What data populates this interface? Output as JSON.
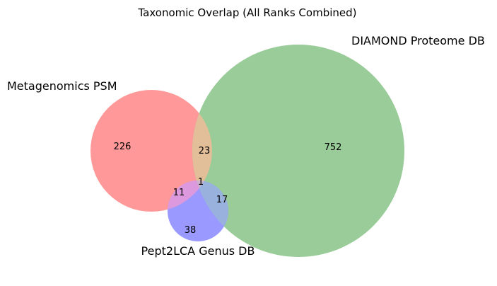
{
  "title": "Taxonomic Overlap (All Ranks Combined)",
  "sets": {
    "a": {
      "label": "Metagenomics PSM",
      "color": "#ff9999"
    },
    "b": {
      "label": "DIAMOND Proteome DB",
      "color": "#99cc99"
    },
    "c": {
      "label": "Pept2LCA Genus DB",
      "color": "#9999ff"
    }
  },
  "region_colors": {
    "ab": "#e2bf99",
    "ac": "#dd99dd",
    "bc": "#99b2dd",
    "abc": "#ccb2cc"
  },
  "counts": {
    "a_only": "226",
    "b_only": "752",
    "c_only": "38",
    "ab_only": "23",
    "ac_only": "11",
    "bc_only": "17",
    "abc": "1"
  }
}
